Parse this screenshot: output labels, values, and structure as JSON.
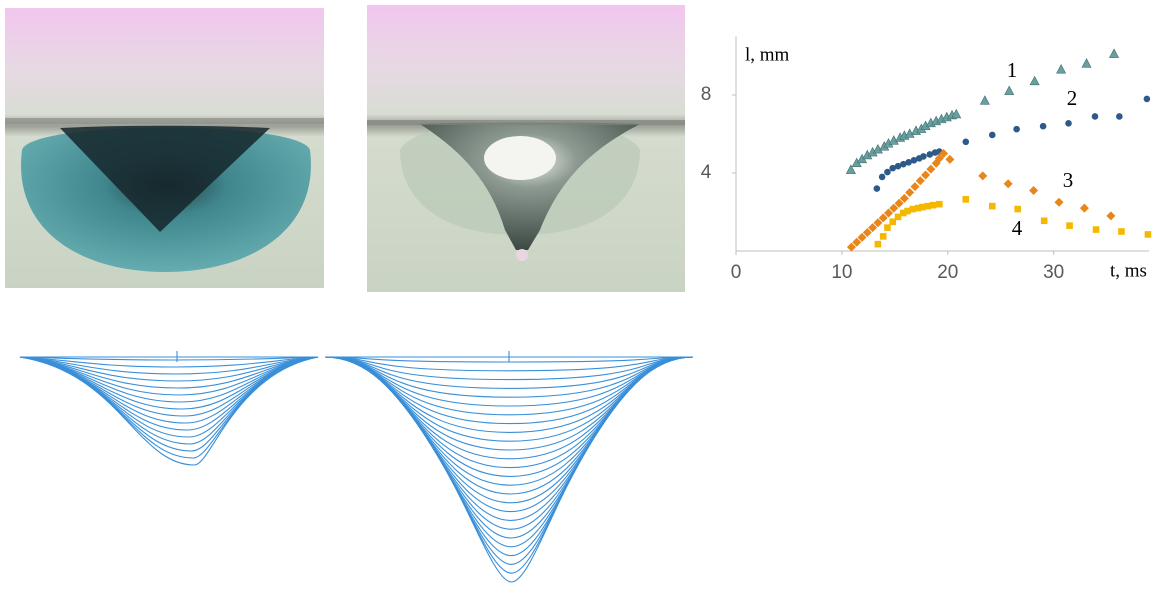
{
  "chart_data": {
    "type": "scatter",
    "x_label": "t, ms",
    "y_label": "l, mm",
    "xlim": [
      0,
      39
    ],
    "ylim": [
      0,
      11
    ],
    "xticks": [
      0,
      10,
      20,
      30
    ],
    "yticks": [
      4,
      8
    ],
    "series": [
      {
        "name": "1",
        "color": "#6a9fa0",
        "marker": "triangle",
        "x": [
          10.85,
          11.4,
          11.9,
          12.4,
          12.9,
          13.4,
          14.0,
          14.4,
          14.9,
          15.5,
          15.9,
          16.4,
          17.0,
          17.5,
          17.9,
          18.4,
          18.9,
          19.4,
          19.9,
          20.4,
          20.8,
          23.5,
          25.8,
          28.2,
          30.7,
          33.1,
          35.7
        ],
        "values": [
          4.15,
          4.5,
          4.7,
          4.9,
          5.05,
          5.2,
          5.35,
          5.5,
          5.65,
          5.8,
          5.9,
          6.0,
          6.15,
          6.25,
          6.4,
          6.55,
          6.65,
          6.75,
          6.85,
          6.95,
          7.0,
          7.7,
          8.2,
          8.7,
          9.3,
          9.6,
          10.1
        ]
      },
      {
        "name": "2",
        "color": "#2e5a8a",
        "marker": "circle",
        "x": [
          13.3,
          13.8,
          14.3,
          14.8,
          15.3,
          15.8,
          16.3,
          16.8,
          17.3,
          17.7,
          18.3,
          18.8,
          19.2,
          21.7,
          24.2,
          26.5,
          29.0,
          31.4,
          33.9,
          36.2,
          38.8
        ],
        "values": [
          3.2,
          3.8,
          4.05,
          4.25,
          4.35,
          4.45,
          4.55,
          4.65,
          4.75,
          4.85,
          4.95,
          5.05,
          5.1,
          5.6,
          5.95,
          6.25,
          6.4,
          6.55,
          6.9,
          6.9,
          7.8
        ]
      },
      {
        "name": "3",
        "color": "#e8861a",
        "marker": "diamond",
        "x": [
          10.9,
          11.4,
          11.9,
          12.4,
          12.9,
          13.4,
          13.9,
          14.4,
          14.9,
          15.4,
          15.9,
          16.4,
          16.9,
          17.4,
          17.9,
          18.4,
          18.9,
          19.2,
          19.6,
          20.2,
          23.3,
          25.7,
          28.1,
          30.5,
          32.9,
          35.4
        ],
        "values": [
          0.2,
          0.45,
          0.7,
          0.95,
          1.2,
          1.45,
          1.7,
          1.95,
          2.2,
          2.45,
          2.7,
          3.0,
          3.3,
          3.6,
          3.9,
          4.2,
          4.5,
          4.75,
          5.0,
          4.7,
          3.85,
          3.45,
          3.1,
          2.5,
          2.2,
          1.8
        ]
      },
      {
        "name": "4",
        "color": "#f5b800",
        "marker": "square",
        "x": [
          13.4,
          13.9,
          14.3,
          14.8,
          15.3,
          15.8,
          16.2,
          16.7,
          17.2,
          17.6,
          18.1,
          18.6,
          19.2,
          21.7,
          24.2,
          26.6,
          29.1,
          31.5,
          34.0,
          36.4,
          38.9
        ],
        "values": [
          0.35,
          0.75,
          1.2,
          1.5,
          1.75,
          1.95,
          2.05,
          2.15,
          2.2,
          2.25,
          2.3,
          2.35,
          2.4,
          2.65,
          2.3,
          2.15,
          1.55,
          1.3,
          1.1,
          1.0,
          0.85
        ]
      }
    ]
  }
}
